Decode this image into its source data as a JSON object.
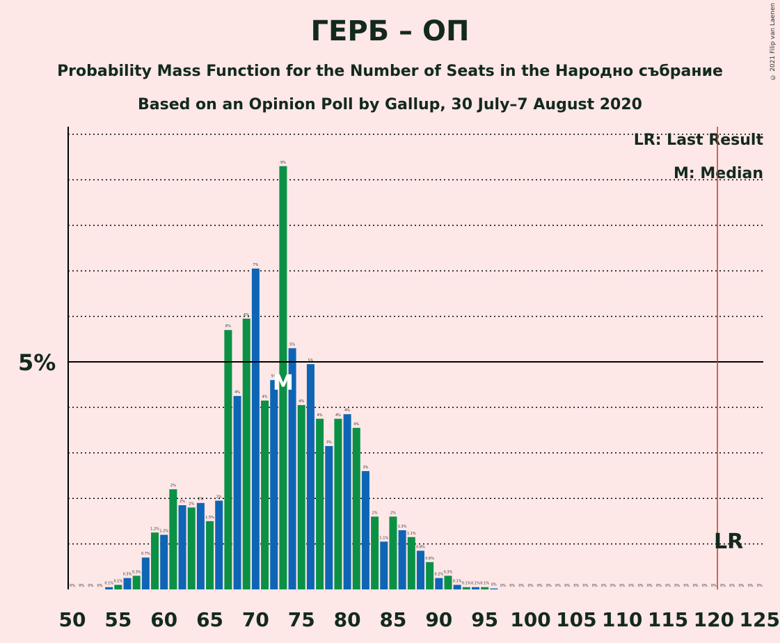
{
  "chart_data": {
    "type": "bar",
    "title": "ГЕРБ – ОП",
    "subtitle": "Probability Mass Function for the Number of Seats in the Народно събрание",
    "source_line": "Based on an Opinion Poll by Gallup, 30 July–7 August 2020",
    "copyright": "© 2021 Filip van Laenen",
    "x": [
      50,
      51,
      52,
      53,
      54,
      55,
      56,
      57,
      58,
      59,
      60,
      61,
      62,
      63,
      64,
      65,
      66,
      67,
      68,
      69,
      70,
      71,
      72,
      73,
      74,
      75,
      76,
      77,
      78,
      79,
      80,
      81,
      82,
      83,
      84,
      85,
      86,
      87,
      88,
      89,
      90,
      91,
      92,
      93,
      94,
      95,
      96,
      97,
      98,
      99,
      100,
      101,
      102,
      103,
      104,
      105,
      106,
      107,
      108,
      109,
      110,
      111,
      112,
      113,
      114,
      115,
      116,
      117,
      118,
      119,
      120,
      121,
      122,
      123,
      124,
      125
    ],
    "values": [
      0,
      0,
      0,
      0,
      0.05,
      0.1,
      0.25,
      0.3,
      0.7,
      1.25,
      1.2,
      2.2,
      1.85,
      1.8,
      1.9,
      1.5,
      1.95,
      5.7,
      4.25,
      5.95,
      7.05,
      4.15,
      4.6,
      9.3,
      5.3,
      4.05,
      4.95,
      3.75,
      3.15,
      3.75,
      3.85,
      3.55,
      2.6,
      1.6,
      1.05,
      1.6,
      1.3,
      1.15,
      0.85,
      0.6,
      0.25,
      0.3,
      0.1,
      0.05,
      0.05,
      0.05,
      0.02,
      0,
      0,
      0,
      0,
      0,
      0,
      0,
      0,
      0,
      0,
      0,
      0,
      0,
      0,
      0,
      0,
      0,
      0,
      0,
      0,
      0,
      0,
      0,
      0,
      0,
      0,
      0,
      0,
      0
    ],
    "labels": [
      "0%",
      "0%",
      "0%",
      "0%",
      "0.1%",
      "0.1%",
      "0.3%",
      "0.3%",
      "0.7%",
      "1.2%",
      "1.2%",
      "2%",
      "2%",
      "2%",
      "2%",
      "1.5%",
      "2%",
      "6%",
      "4%",
      "6%",
      "7%",
      "4%",
      "5%",
      "9%",
      "5%",
      "4%",
      "5%",
      "4%",
      "3%",
      "4%",
      "4%",
      "4%",
      "3%",
      "2%",
      "1.1%",
      "2%",
      "1.3%",
      "1.1%",
      "0.8%",
      "0.6%",
      "0.2%",
      "0.3%",
      "0.1%",
      "0.1%",
      "0.1%",
      "0.1%",
      "0%",
      "0%",
      "0%",
      "0%",
      "0%",
      "0%",
      "0%",
      "0%",
      "0%",
      "0%",
      "0%",
      "0%",
      "0%",
      "0%",
      "0%",
      "0%",
      "0%",
      "0%",
      "0%",
      "0%",
      "0%",
      "0%",
      "0%",
      "0%",
      "0%",
      "0%",
      "0%",
      "0%",
      "0%",
      "0%"
    ],
    "x_ticks": [
      50,
      55,
      60,
      65,
      70,
      75,
      80,
      85,
      90,
      95,
      100,
      105,
      110,
      115,
      120,
      125
    ],
    "y_tick_label": "5%",
    "y_tick_value": 5,
    "ylim": [
      0,
      10
    ],
    "median": 73,
    "median_label": "M",
    "last_result": 121,
    "last_result_label": "LR",
    "legend": [
      "LR: Last Result",
      "M: Median"
    ],
    "colors": {
      "green": "#0a9146",
      "blue": "#0e65b5",
      "lr_line": "#c0392b",
      "background": "#fde7e7",
      "text": "#13291e"
    }
  }
}
